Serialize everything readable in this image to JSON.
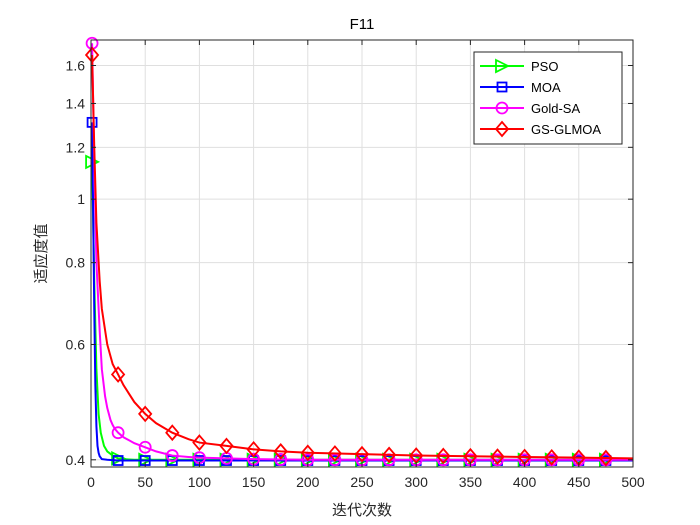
{
  "chart_data": {
    "type": "line",
    "title": "F11",
    "xlabel": "迭代次数",
    "ylabel": "适应度值",
    "xlim": [
      0,
      500
    ],
    "ylim": [
      0.39,
      1.75
    ],
    "yscale": "log",
    "grid": true,
    "legend_position": "top-right",
    "x_ticks": [
      0,
      50,
      100,
      150,
      200,
      250,
      300,
      350,
      400,
      450,
      500
    ],
    "x_tick_labels": [
      "0",
      "50",
      "100",
      "150",
      "200",
      "250",
      "300",
      "350",
      "400",
      "450",
      "500"
    ],
    "y_ticks": [
      0.4,
      0.6,
      0.8,
      1,
      1.2,
      1.4,
      1.6
    ],
    "y_tick_labels": [
      "0.4",
      "0.6",
      "0.8",
      "1",
      "1.2",
      "1.4",
      "1.6"
    ],
    "series": [
      {
        "name": "PSO",
        "color": "#00ff00",
        "marker": "triangle-right",
        "x": [
          1,
          3,
          5,
          7,
          9,
          12,
          15,
          20,
          25,
          30,
          40,
          50,
          75,
          100,
          150,
          200,
          250,
          300,
          350,
          400,
          450,
          500
        ],
        "y": [
          1.14,
          0.75,
          0.55,
          0.47,
          0.44,
          0.42,
          0.412,
          0.406,
          0.402,
          0.401,
          0.4,
          0.4,
          0.4,
          0.4,
          0.4,
          0.4,
          0.4,
          0.4,
          0.4,
          0.4,
          0.4,
          0.4
        ],
        "marker_x": [
          1,
          25,
          50,
          75,
          100,
          125,
          150,
          175,
          200,
          225,
          250,
          275,
          300,
          325,
          350,
          375,
          400,
          425,
          450,
          475
        ]
      },
      {
        "name": "MOA",
        "color": "#0000ff",
        "marker": "square",
        "x": [
          1,
          2,
          3,
          4,
          5,
          6,
          7,
          8,
          10,
          15,
          25,
          50,
          100,
          200,
          300,
          400,
          500
        ],
        "y": [
          1.31,
          0.95,
          0.68,
          0.52,
          0.45,
          0.42,
          0.41,
          0.405,
          0.401,
          0.4,
          0.399,
          0.399,
          0.399,
          0.399,
          0.399,
          0.399,
          0.399
        ],
        "marker_x": [
          1,
          25,
          50,
          75,
          100,
          125,
          150,
          175,
          200,
          225,
          250,
          275,
          300,
          325,
          350,
          375,
          400,
          425,
          450,
          475
        ]
      },
      {
        "name": "Gold-SA",
        "color": "#ff00ff",
        "marker": "circle",
        "x": [
          1,
          3,
          5,
          8,
          10,
          13,
          15,
          18,
          20,
          22,
          25,
          30,
          40,
          50,
          60,
          75,
          90,
          100,
          125,
          150,
          200,
          250,
          300,
          350,
          400,
          450,
          500
        ],
        "y": [
          1.73,
          1.15,
          0.8,
          0.63,
          0.55,
          0.5,
          0.48,
          0.46,
          0.452,
          0.446,
          0.44,
          0.433,
          0.424,
          0.418,
          0.412,
          0.406,
          0.404,
          0.403,
          0.402,
          0.401,
          0.4,
          0.4,
          0.4,
          0.4,
          0.4,
          0.4,
          0.4
        ],
        "marker_x": [
          1,
          25,
          50,
          75,
          100,
          125,
          150,
          175,
          200,
          225,
          250,
          275,
          300,
          325,
          350,
          375,
          400,
          425,
          450,
          475
        ]
      },
      {
        "name": "GS-GLMOA",
        "color": "#ff0000",
        "marker": "diamond",
        "x": [
          1,
          3,
          5,
          8,
          10,
          15,
          20,
          25,
          30,
          40,
          50,
          60,
          75,
          90,
          100,
          125,
          150,
          175,
          200,
          250,
          300,
          350,
          400,
          450,
          500
        ],
        "y": [
          1.66,
          1.2,
          0.92,
          0.75,
          0.68,
          0.6,
          0.56,
          0.54,
          0.52,
          0.49,
          0.47,
          0.455,
          0.44,
          0.43,
          0.425,
          0.42,
          0.415,
          0.412,
          0.41,
          0.408,
          0.406,
          0.405,
          0.404,
          0.403,
          0.402
        ],
        "marker_x": [
          1,
          25,
          50,
          75,
          100,
          125,
          150,
          175,
          200,
          225,
          250,
          275,
          300,
          325,
          350,
          375,
          400,
          425,
          450,
          475
        ]
      }
    ]
  }
}
